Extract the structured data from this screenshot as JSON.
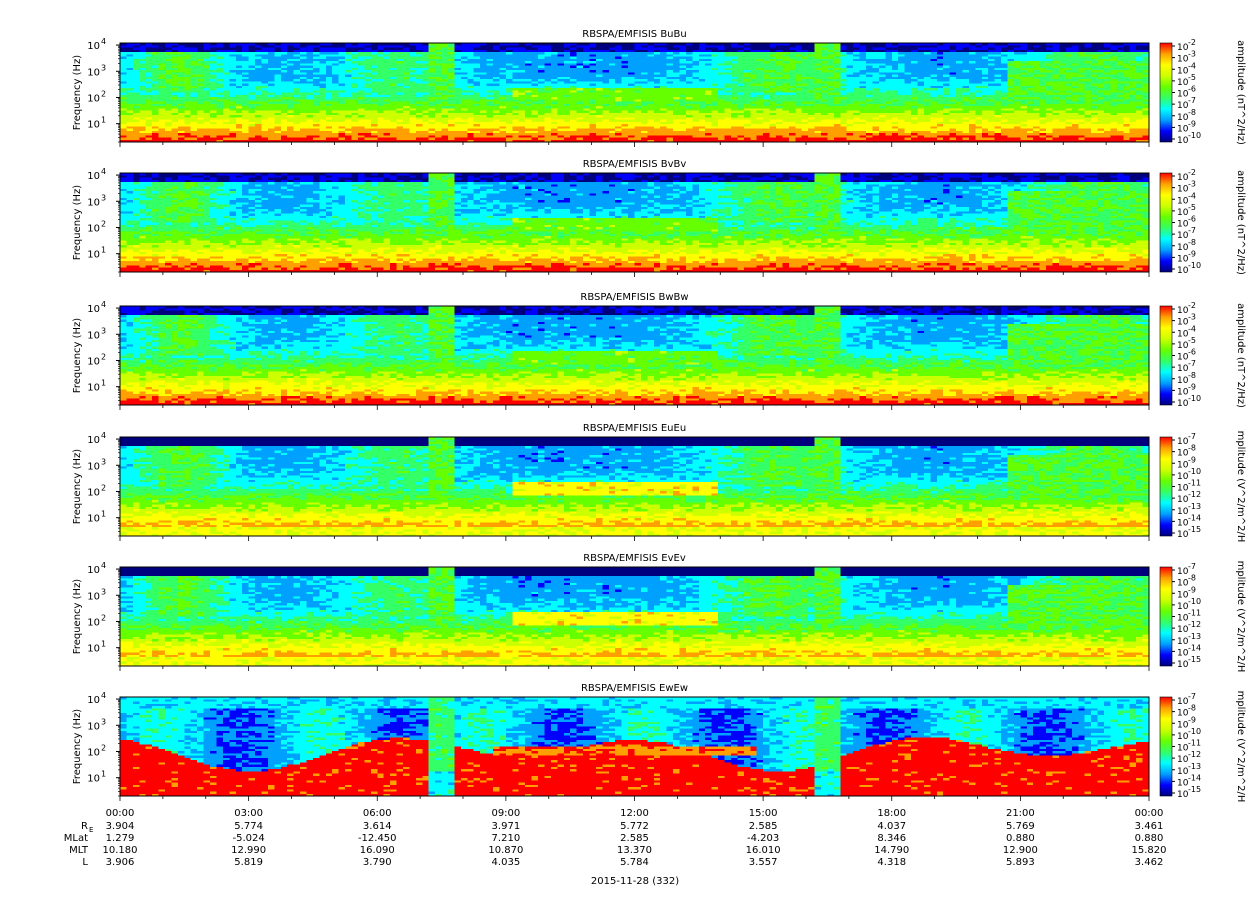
{
  "chart_data": {
    "type": "heatmap",
    "date_label": "2015-11-28 (332)",
    "x_ticks": [
      "00:00",
      "03:00",
      "06:00",
      "09:00",
      "12:00",
      "15:00",
      "18:00",
      "21:00",
      "00:00"
    ],
    "ephemeris": {
      "rows": [
        {
          "label": "R",
          "sub": "E",
          "values": [
            "3.904",
            "5.774",
            "3.614",
            "3.971",
            "5.772",
            "2.585",
            "4.037",
            "5.769",
            "3.461"
          ]
        },
        {
          "label": "MLat",
          "sub": "",
          "values": [
            "1.279",
            "-5.024",
            "-12.450",
            "7.210",
            "2.585",
            "-4.203",
            "8.346",
            "0.880",
            "0.880"
          ]
        },
        {
          "label": "MLT",
          "sub": "",
          "values": [
            "10.180",
            "12.990",
            "16.090",
            "10.870",
            "13.370",
            "16.010",
            "14.790",
            "12.900",
            "15.820"
          ]
        },
        {
          "label": "L",
          "sub": "",
          "values": [
            "3.906",
            "5.819",
            "3.790",
            "4.035",
            "5.784",
            "3.557",
            "4.318",
            "5.893",
            "3.462"
          ]
        }
      ]
    },
    "panels": [
      {
        "title": "RBSPA/EMFISIS  BuBu",
        "ylabel": "Frequency (Hz)",
        "ylim": [
          2,
          12000
        ],
        "colorbar_label": "amplitude (nT^2/Hz)",
        "cbar_exps": [
          "-2",
          "-3",
          "-4",
          "-5",
          "-6",
          "-7",
          "-8",
          "-9",
          "-10"
        ]
      },
      {
        "title": "RBSPA/EMFISIS  BvBv",
        "ylabel": "Frequency (Hz)",
        "ylim": [
          2,
          12000
        ],
        "colorbar_label": "amplitude (nT^2/Hz)",
        "cbar_exps": [
          "-2",
          "-3",
          "-4",
          "-5",
          "-6",
          "-7",
          "-8",
          "-9",
          "-10"
        ]
      },
      {
        "title": "RBSPA/EMFISIS  BwBw",
        "ylabel": "Frequency (Hz)",
        "ylim": [
          2,
          12000
        ],
        "colorbar_label": "amplitude (nT^2/Hz)",
        "cbar_exps": [
          "-2",
          "-3",
          "-4",
          "-5",
          "-6",
          "-7",
          "-8",
          "-9",
          "-10"
        ]
      },
      {
        "title": "RBSPA/EMFISIS  EuEu",
        "ylabel": "Frequency (Hz)",
        "ylim": [
          2,
          12000
        ],
        "colorbar_label": "mplitude (V^2/m^2/H",
        "cbar_exps": [
          "-7",
          "-8",
          "-9",
          "-10",
          "-11",
          "-12",
          "-13",
          "-14",
          "-15"
        ]
      },
      {
        "title": "RBSPA/EMFISIS  EvEv",
        "ylabel": "Frequency (Hz)",
        "ylim": [
          2,
          12000
        ],
        "colorbar_label": "mplitude (V^2/m^2/H",
        "cbar_exps": [
          "-7",
          "-8",
          "-9",
          "-10",
          "-11",
          "-12",
          "-13",
          "-14",
          "-15"
        ]
      },
      {
        "title": "RBSPA/EMFISIS  EwEw",
        "ylabel": "Frequency (Hz)",
        "ylim": [
          2,
          12000
        ],
        "colorbar_label": "mplitude (V^2/m^2/H",
        "cbar_exps": [
          "-7",
          "-8",
          "-9",
          "-10",
          "-11",
          "-12",
          "-13",
          "-14",
          "-15"
        ]
      }
    ],
    "y_tick_exps": [
      "4",
      "3",
      "2",
      "1"
    ],
    "colormap": [
      "#00007f",
      "#0000ff",
      "#00a0ff",
      "#00ffff",
      "#33ff66",
      "#66ff00",
      "#ccff00",
      "#ffff00",
      "#ffa000",
      "#ff0000"
    ]
  }
}
